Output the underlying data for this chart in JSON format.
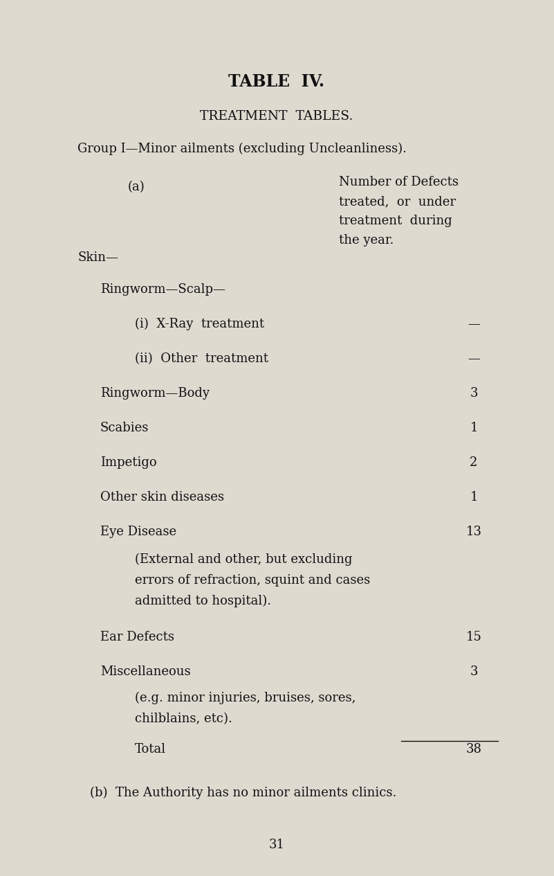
{
  "bg_color": "#dedad0",
  "text_color": "#111111",
  "title": "TABLE  IV.",
  "subtitle": "TREATMENT  TABLES.",
  "group_line": "Group I—Minor ailments (excluding Uncleanliness).",
  "col_a_label": "(a)",
  "col_b_label_lines": [
    "Number of Defects",
    "treated,  or  under",
    "treatment  during",
    "the year."
  ],
  "skin_label": "Skin—",
  "rows": [
    {
      "label": "Ringworm—Scalp—",
      "value": "",
      "indent": 1
    },
    {
      "label": "(i)  X-Ray  treatment",
      "value": "—",
      "indent": 2
    },
    {
      "label": "(ii)  Other  treatment",
      "value": "—",
      "indent": 2
    },
    {
      "label": "Ringworm—Body",
      "value": "3",
      "indent": 1
    },
    {
      "label": "Scabies",
      "value": "1",
      "indent": 1
    },
    {
      "label": "Impetigo",
      "value": "2",
      "indent": 1
    },
    {
      "label": "Other skin diseases",
      "value": "1",
      "indent": 1
    },
    {
      "label": "Eye Disease",
      "value": "13",
      "indent": 1
    },
    {
      "label": "(External and other, but excluding",
      "value": "",
      "indent": 2
    },
    {
      "label": "errors of refraction, squint and cases",
      "value": "",
      "indent": 2
    },
    {
      "label": "admitted to hospital).",
      "value": "",
      "indent": 2
    },
    {
      "label": "Ear Defects",
      "value": "15",
      "indent": 1
    },
    {
      "label": "Miscellaneous",
      "value": "3",
      "indent": 1
    },
    {
      "label": "(e.g. minor injuries, bruises, sores,",
      "value": "",
      "indent": 2
    },
    {
      "label": "chilblains, etc).",
      "value": "",
      "indent": 2
    },
    {
      "label": "Total",
      "value": "38",
      "indent": 2,
      "underline_before": true
    }
  ],
  "footer": "(b)  The Authority has no minor ailments clinics.",
  "page_number": "31",
  "title_fontsize": 17,
  "subtitle_fontsize": 13.5,
  "body_fontsize": 13,
  "col_b_fontsize": 13
}
